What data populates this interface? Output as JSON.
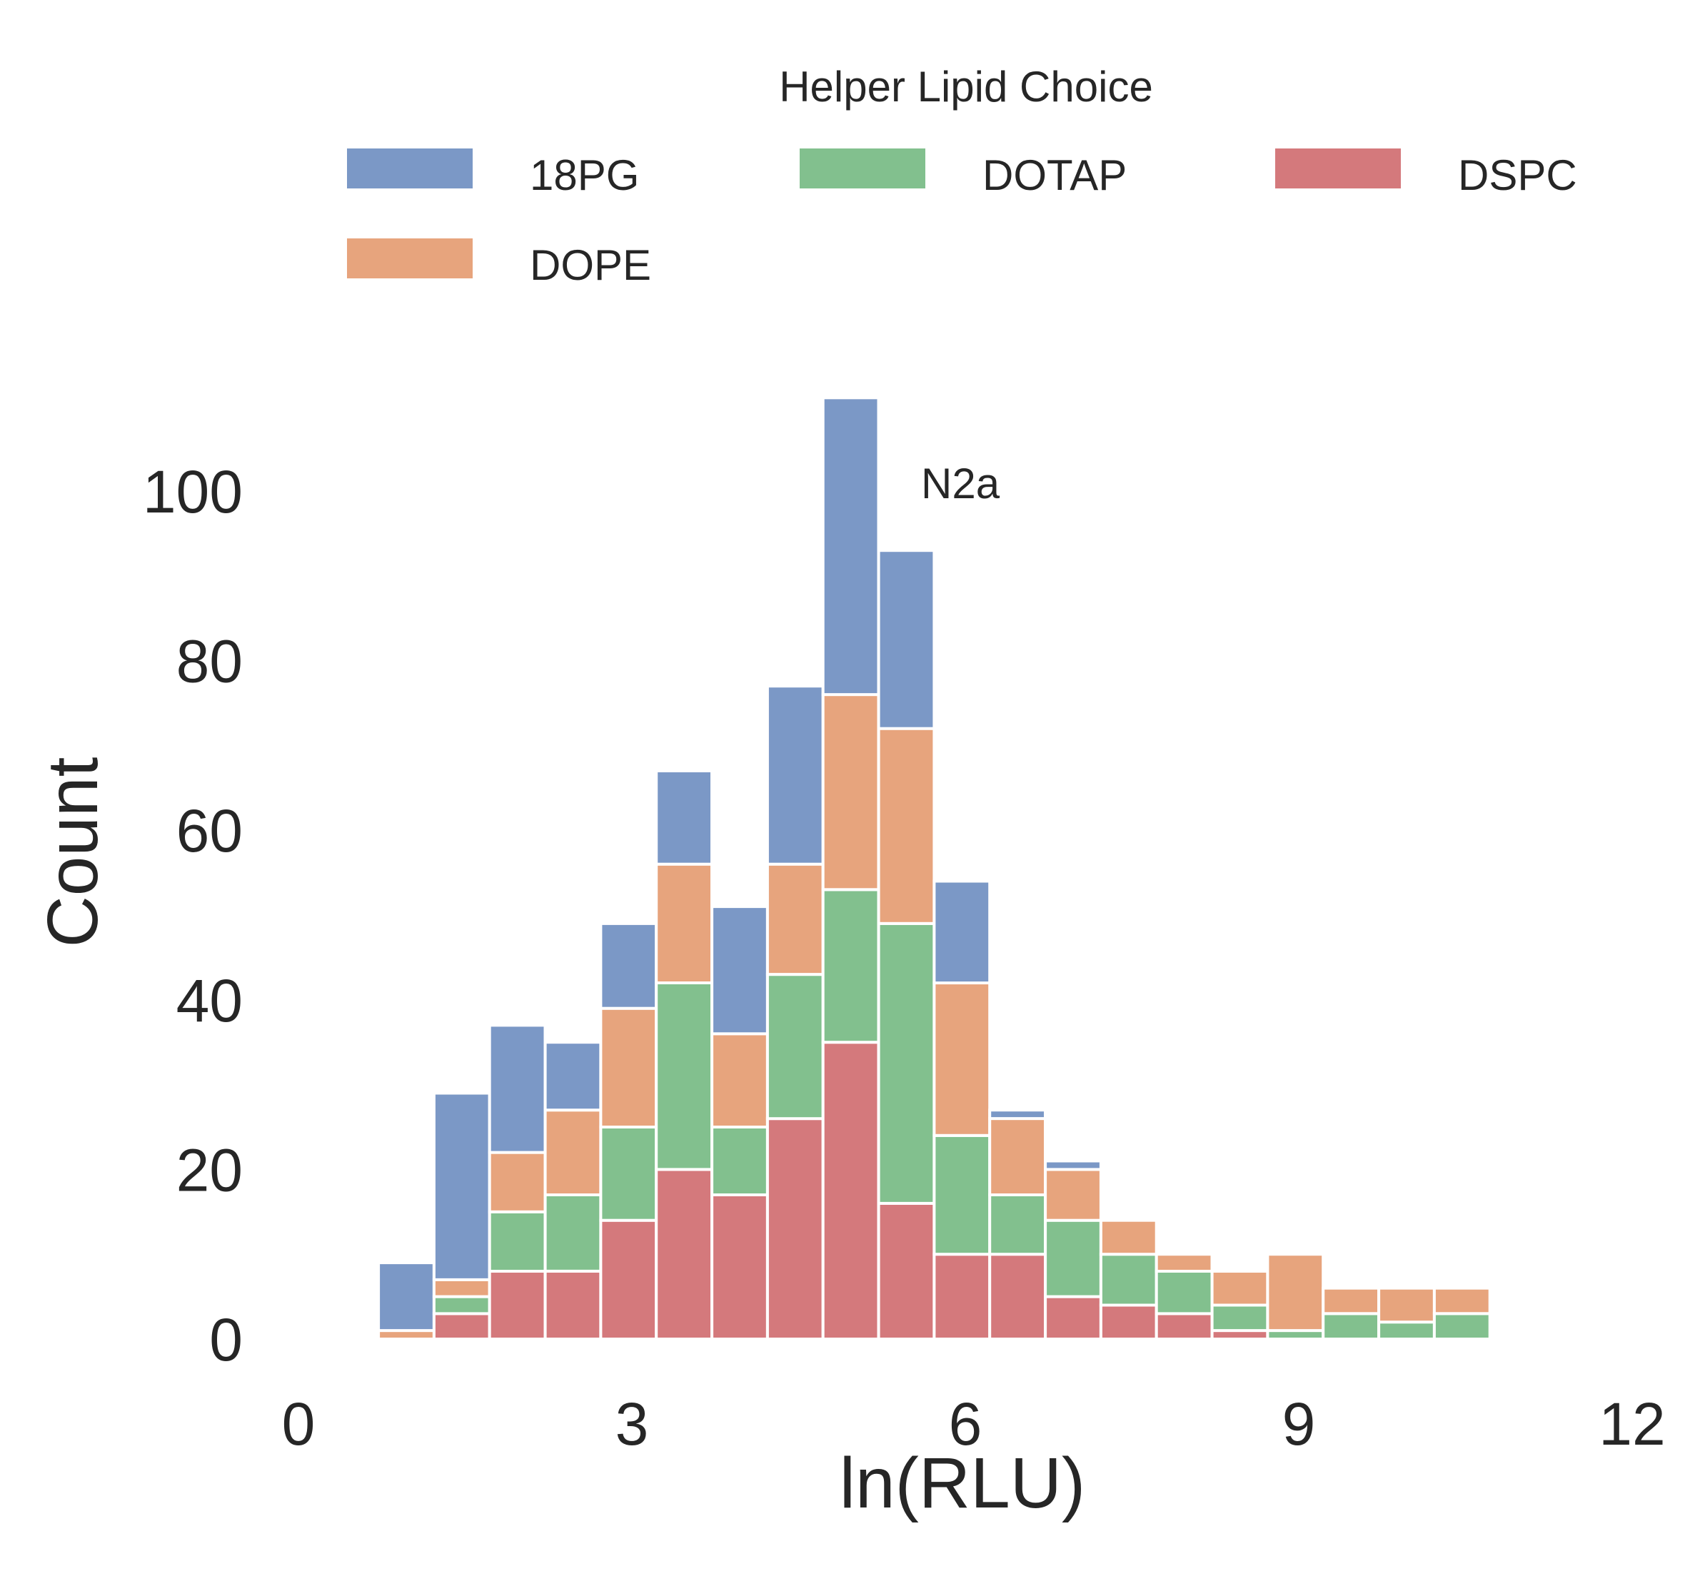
{
  "chart_data": {
    "type": "bar",
    "stacked": true,
    "title": "",
    "annotation": "N2a",
    "xlabel": "ln(RLU)",
    "ylabel": "Count",
    "xlim": [
      0,
      12
    ],
    "ylim": [
      0,
      111
    ],
    "xticks": [
      "0",
      "3",
      "6",
      "9",
      "12"
    ],
    "yticks": [
      "0",
      "20",
      "40",
      "60",
      "80",
      "100"
    ],
    "grid": false,
    "legend": {
      "title": "Helper Lipid Choice",
      "placement": "top"
    },
    "bins": {
      "start": 0.72,
      "width": 0.5,
      "count": 20
    },
    "series": [
      {
        "name": "DSPC",
        "color": "#d4797c",
        "values": [
          0,
          3,
          8,
          8,
          14,
          20,
          17,
          26,
          35,
          16,
          10,
          10,
          5,
          4,
          3,
          1,
          0,
          0,
          0,
          0
        ]
      },
      {
        "name": "DOTAP",
        "color": "#82c08e",
        "values": [
          0,
          2,
          7,
          9,
          11,
          22,
          8,
          17,
          18,
          33,
          14,
          7,
          9,
          6,
          5,
          3,
          1,
          3,
          2,
          3
        ]
      },
      {
        "name": "DOPE",
        "color": "#e7a47d",
        "values": [
          1,
          2,
          7,
          10,
          14,
          14,
          11,
          13,
          23,
          23,
          18,
          9,
          6,
          4,
          2,
          4,
          9,
          3,
          4,
          3
        ]
      },
      {
        "name": "18PG",
        "color": "#7b98c6",
        "values": [
          8,
          22,
          15,
          8,
          10,
          11,
          15,
          21,
          35,
          21,
          12,
          1,
          1,
          0,
          0,
          0,
          0,
          0,
          0,
          0
        ]
      }
    ],
    "legend_order": [
      "18PG",
      "DOTAP",
      "DSPC",
      "DOPE"
    ]
  }
}
